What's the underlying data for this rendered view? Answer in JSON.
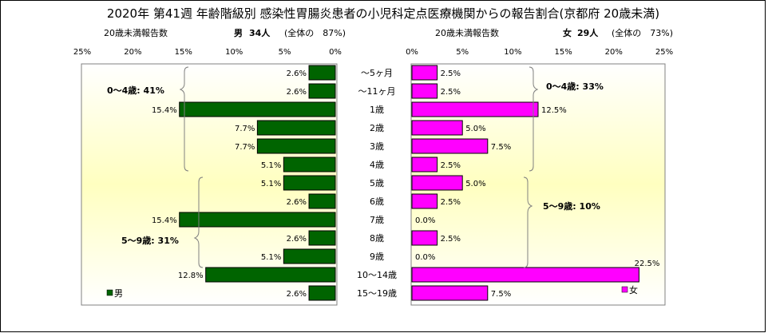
{
  "title": "2020年 第41週 年齢階級別 感染性胃腸炎患者の小児科定点医療機関からの報告割合(京都府 20歳未満)",
  "colors": {
    "male": "#006400",
    "female": "#ff00ff",
    "panel_top": "#ffffff",
    "panel_mid": "#ffffc0"
  },
  "male_header": {
    "sub": "20歳未満報告数",
    "label": "男",
    "count": "34人",
    "share": "(全体の　87%)"
  },
  "female_header": {
    "sub": "20歳未満報告数",
    "label": "女",
    "count": "29人",
    "share": "(全体の　73%)"
  },
  "chart_data": {
    "type": "bar",
    "orientation": "horizontal-butterfly",
    "categories": [
      "～5ヶ月",
      "～11ヶ月",
      "1歳",
      "2歳",
      "3歳",
      "4歳",
      "5歳",
      "6歳",
      "7歳",
      "8歳",
      "9歳",
      "10～14歳",
      "15～19歳"
    ],
    "unit": "%",
    "xlim": [
      0,
      25
    ],
    "ticks": [
      "25%",
      "20%",
      "15%",
      "10%",
      "5%",
      "0%"
    ],
    "female_ticks": [
      "0%",
      "5%",
      "10%",
      "15%",
      "20%",
      "25%"
    ],
    "series": [
      {
        "name": "男",
        "values": [
          2.6,
          2.6,
          15.4,
          7.7,
          7.7,
          5.1,
          5.1,
          2.6,
          15.4,
          2.6,
          5.1,
          12.8,
          2.6
        ],
        "labels": [
          "2.6%",
          "2.6%",
          "15.4%",
          "7.7%",
          "7.7%",
          "5.1%",
          "5.1%",
          "2.6%",
          "15.4%",
          "2.6%",
          "5.1%",
          "12.8%",
          "2.6%"
        ]
      },
      {
        "name": "女",
        "values": [
          2.5,
          2.5,
          12.5,
          5.0,
          7.5,
          2.5,
          5.0,
          2.5,
          0.0,
          2.5,
          0.0,
          22.5,
          7.5
        ],
        "labels": [
          "2.5%",
          "2.5%",
          "12.5%",
          "5.0%",
          "7.5%",
          "2.5%",
          "5.0%",
          "2.5%",
          "0.0%",
          "2.5%",
          "0.0%",
          "22.5%",
          "7.5%"
        ]
      }
    ],
    "groups": {
      "male": [
        "0～4歳: 41%",
        "5～9歳: 31%"
      ],
      "female": [
        "0～4歳: 33%",
        "5～9歳: 10%"
      ]
    },
    "legend": {
      "male": "男",
      "female": "女",
      "placement": "bottom-left / bottom-right"
    }
  }
}
